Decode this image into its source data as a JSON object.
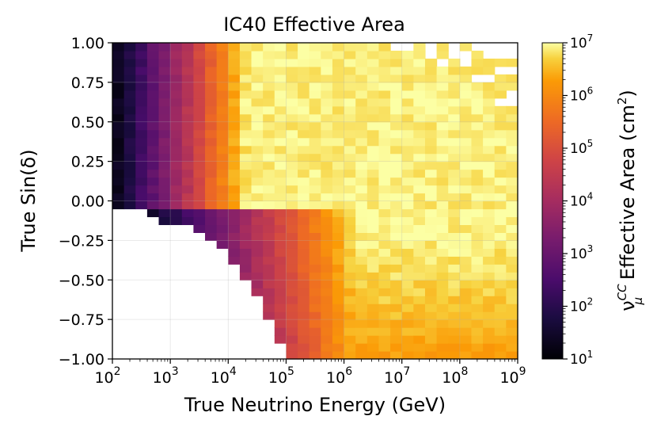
{
  "chart_data": {
    "type": "heatmap",
    "title": "IC40 Effective Area",
    "xlabel": "True Neutrino Energy (GeV)",
    "ylabel": "True Sin(δ)",
    "colorbar_label": {
      "prefix": "ν",
      "sub": "μ",
      "sup": "CC",
      "suffix_main": " Effective Area (cm",
      "suffix_sup": "2",
      "suffix_end": ")"
    },
    "x_scale": "log",
    "x_range": [
      100,
      1000000000
    ],
    "x_ticks": [
      {
        "base": "10",
        "exp": "2"
      },
      {
        "base": "10",
        "exp": "3"
      },
      {
        "base": "10",
        "exp": "4"
      },
      {
        "base": "10",
        "exp": "5"
      },
      {
        "base": "10",
        "exp": "6"
      },
      {
        "base": "10",
        "exp": "7"
      },
      {
        "base": "10",
        "exp": "8"
      },
      {
        "base": "10",
        "exp": "9"
      }
    ],
    "y_range": [
      -1.0,
      1.0
    ],
    "y_ticks": [
      "1.00",
      "0.75",
      "0.50",
      "0.25",
      "0.00",
      "−0.25",
      "−0.50",
      "−0.75",
      "−1.00"
    ],
    "colorbar": {
      "scale": "log",
      "range": [
        10,
        10000000
      ],
      "colormap": "inferno",
      "ticks": [
        {
          "base": "10",
          "exp": "7"
        },
        {
          "base": "10",
          "exp": "6"
        },
        {
          "base": "10",
          "exp": "5"
        },
        {
          "base": "10",
          "exp": "4"
        },
        {
          "base": "10",
          "exp": "3"
        },
        {
          "base": "10",
          "exp": "2"
        },
        {
          "base": "10",
          "exp": "1"
        }
      ]
    },
    "grid": true,
    "bins": {
      "log10_energy": [
        2,
        9,
        35
      ],
      "sin_dec": [
        -1,
        1,
        40
      ]
    },
    "features": {
      "peak_log10_area": 7,
      "peak_region": {
        "log10_energy": [
          6,
          9
        ],
        "sin_dec": [
          -0.4,
          0.05
        ]
      },
      "empty_region": "low energy, southern sky (sin(δ) < 0, energy < 10^5 GeV)"
    }
  }
}
